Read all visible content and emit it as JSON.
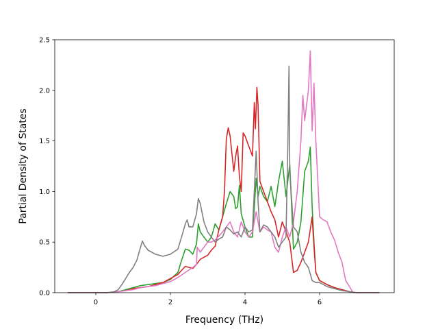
{
  "chart_data": {
    "type": "line",
    "title": "",
    "xlabel": "Frequency (THz)",
    "ylabel": "Partial Density of States",
    "xlim": [
      -1.1,
      8.0
    ],
    "ylim": [
      0,
      2.5
    ],
    "xticks": [
      0,
      2,
      4,
      6
    ],
    "yticks": [
      0.0,
      0.5,
      1.0,
      1.5,
      2.0,
      2.5
    ],
    "xtick_labels": [
      "0",
      "2",
      "4",
      "6"
    ],
    "ytick_labels": [
      "0.0",
      "0.5",
      "1.0",
      "1.5",
      "2.0",
      "2.5"
    ],
    "grid": false,
    "legend": false,
    "series": [
      {
        "color": "#2ca02c",
        "points": [
          [
            -0.75,
            0
          ],
          [
            0.3,
            0
          ],
          [
            0.6,
            0.01
          ],
          [
            0.8,
            0.03
          ],
          [
            1.0,
            0.05
          ],
          [
            1.2,
            0.07
          ],
          [
            1.4,
            0.08
          ],
          [
            1.6,
            0.09
          ],
          [
            1.8,
            0.1
          ],
          [
            2.0,
            0.13
          ],
          [
            2.2,
            0.2
          ],
          [
            2.3,
            0.32
          ],
          [
            2.4,
            0.43
          ],
          [
            2.5,
            0.42
          ],
          [
            2.6,
            0.38
          ],
          [
            2.7,
            0.48
          ],
          [
            2.75,
            0.68
          ],
          [
            2.8,
            0.6
          ],
          [
            2.9,
            0.55
          ],
          [
            3.0,
            0.5
          ],
          [
            3.1,
            0.55
          ],
          [
            3.2,
            0.68
          ],
          [
            3.3,
            0.62
          ],
          [
            3.4,
            0.75
          ],
          [
            3.5,
            0.88
          ],
          [
            3.6,
            1.0
          ],
          [
            3.7,
            0.95
          ],
          [
            3.75,
            0.83
          ],
          [
            3.8,
            0.85
          ],
          [
            3.85,
            1.06
          ],
          [
            3.9,
            0.78
          ],
          [
            4.0,
            0.65
          ],
          [
            4.1,
            0.55
          ],
          [
            4.2,
            0.55
          ],
          [
            4.3,
            1.13
          ],
          [
            4.35,
            0.95
          ],
          [
            4.4,
            1.05
          ],
          [
            4.5,
            0.95
          ],
          [
            4.6,
            0.9
          ],
          [
            4.7,
            1.05
          ],
          [
            4.8,
            0.85
          ],
          [
            4.9,
            1.1
          ],
          [
            5.0,
            1.3
          ],
          [
            5.1,
            0.95
          ],
          [
            5.2,
            1.27
          ],
          [
            5.3,
            0.43
          ],
          [
            5.4,
            0.5
          ],
          [
            5.5,
            0.7
          ],
          [
            5.6,
            1.2
          ],
          [
            5.7,
            1.3
          ],
          [
            5.75,
            1.44
          ],
          [
            5.8,
            0.85
          ],
          [
            5.85,
            0.5
          ],
          [
            5.9,
            0.2
          ],
          [
            6.0,
            0.12
          ],
          [
            6.2,
            0.08
          ],
          [
            6.4,
            0.05
          ],
          [
            6.6,
            0.03
          ],
          [
            6.8,
            0.01
          ],
          [
            7.0,
            0
          ],
          [
            7.6,
            0
          ]
        ]
      },
      {
        "color": "#d62728",
        "points": [
          [
            -0.75,
            0
          ],
          [
            0.3,
            0
          ],
          [
            0.6,
            0.01
          ],
          [
            0.8,
            0.02
          ],
          [
            1.0,
            0.04
          ],
          [
            1.2,
            0.05
          ],
          [
            1.4,
            0.06
          ],
          [
            1.6,
            0.08
          ],
          [
            1.8,
            0.1
          ],
          [
            2.0,
            0.14
          ],
          [
            2.2,
            0.18
          ],
          [
            2.3,
            0.22
          ],
          [
            2.4,
            0.26
          ],
          [
            2.5,
            0.25
          ],
          [
            2.6,
            0.24
          ],
          [
            2.7,
            0.28
          ],
          [
            2.8,
            0.33
          ],
          [
            2.9,
            0.35
          ],
          [
            3.0,
            0.37
          ],
          [
            3.1,
            0.42
          ],
          [
            3.2,
            0.46
          ],
          [
            3.3,
            0.62
          ],
          [
            3.4,
            0.75
          ],
          [
            3.45,
            1.0
          ],
          [
            3.5,
            1.52
          ],
          [
            3.55,
            1.63
          ],
          [
            3.6,
            1.55
          ],
          [
            3.7,
            1.2
          ],
          [
            3.75,
            1.35
          ],
          [
            3.8,
            1.45
          ],
          [
            3.85,
            1.15
          ],
          [
            3.9,
            1.0
          ],
          [
            3.95,
            1.58
          ],
          [
            4.0,
            1.55
          ],
          [
            4.1,
            1.45
          ],
          [
            4.2,
            1.35
          ],
          [
            4.25,
            1.88
          ],
          [
            4.28,
            1.62
          ],
          [
            4.32,
            2.03
          ],
          [
            4.35,
            1.85
          ],
          [
            4.4,
            1.1
          ],
          [
            4.5,
            1.0
          ],
          [
            4.6,
            0.9
          ],
          [
            4.7,
            0.8
          ],
          [
            4.8,
            0.72
          ],
          [
            4.9,
            0.55
          ],
          [
            5.0,
            0.7
          ],
          [
            5.1,
            0.6
          ],
          [
            5.2,
            0.5
          ],
          [
            5.3,
            0.2
          ],
          [
            5.4,
            0.22
          ],
          [
            5.5,
            0.3
          ],
          [
            5.6,
            0.4
          ],
          [
            5.7,
            0.5
          ],
          [
            5.8,
            0.75
          ],
          [
            5.85,
            0.45
          ],
          [
            5.9,
            0.2
          ],
          [
            6.0,
            0.12
          ],
          [
            6.2,
            0.08
          ],
          [
            6.4,
            0.05
          ],
          [
            6.6,
            0.03
          ],
          [
            6.8,
            0.01
          ],
          [
            7.0,
            0
          ],
          [
            7.6,
            0
          ]
        ]
      },
      {
        "color": "#e377c2",
        "points": [
          [
            -0.75,
            0
          ],
          [
            0.3,
            0
          ],
          [
            0.6,
            0.01
          ],
          [
            0.8,
            0.02
          ],
          [
            1.0,
            0.03
          ],
          [
            1.2,
            0.05
          ],
          [
            1.4,
            0.06
          ],
          [
            1.6,
            0.07
          ],
          [
            1.8,
            0.09
          ],
          [
            2.0,
            0.11
          ],
          [
            2.2,
            0.15
          ],
          [
            2.4,
            0.2
          ],
          [
            2.6,
            0.25
          ],
          [
            2.7,
            0.28
          ],
          [
            2.72,
            0.45
          ],
          [
            2.8,
            0.4
          ],
          [
            2.9,
            0.45
          ],
          [
            3.0,
            0.5
          ],
          [
            3.1,
            0.5
          ],
          [
            3.2,
            0.52
          ],
          [
            3.4,
            0.6
          ],
          [
            3.5,
            0.65
          ],
          [
            3.6,
            0.7
          ],
          [
            3.7,
            0.6
          ],
          [
            3.8,
            0.55
          ],
          [
            3.9,
            0.7
          ],
          [
            4.0,
            0.6
          ],
          [
            4.1,
            0.55
          ],
          [
            4.2,
            0.6
          ],
          [
            4.3,
            0.8
          ],
          [
            4.4,
            0.6
          ],
          [
            4.5,
            0.65
          ],
          [
            4.6,
            0.62
          ],
          [
            4.7,
            0.6
          ],
          [
            4.8,
            0.45
          ],
          [
            4.9,
            0.4
          ],
          [
            5.0,
            0.55
          ],
          [
            5.1,
            0.65
          ],
          [
            5.2,
            0.55
          ],
          [
            5.3,
            0.7
          ],
          [
            5.4,
            1.0
          ],
          [
            5.5,
            1.5
          ],
          [
            5.55,
            1.95
          ],
          [
            5.6,
            1.7
          ],
          [
            5.65,
            1.85
          ],
          [
            5.7,
            2.0
          ],
          [
            5.75,
            2.39
          ],
          [
            5.8,
            1.6
          ],
          [
            5.85,
            2.07
          ],
          [
            5.9,
            1.5
          ],
          [
            6.0,
            0.75
          ],
          [
            6.1,
            0.72
          ],
          [
            6.2,
            0.7
          ],
          [
            6.3,
            0.6
          ],
          [
            6.4,
            0.52
          ],
          [
            6.5,
            0.4
          ],
          [
            6.6,
            0.3
          ],
          [
            6.7,
            0.12
          ],
          [
            6.8,
            0.06
          ],
          [
            6.9,
            0
          ],
          [
            7.6,
            0
          ]
        ]
      },
      {
        "color": "#7f7f7f",
        "points": [
          [
            -0.75,
            0
          ],
          [
            0.3,
            0
          ],
          [
            0.5,
            0.01
          ],
          [
            0.6,
            0.03
          ],
          [
            0.7,
            0.08
          ],
          [
            0.8,
            0.14
          ],
          [
            0.9,
            0.2
          ],
          [
            1.0,
            0.25
          ],
          [
            1.1,
            0.32
          ],
          [
            1.2,
            0.45
          ],
          [
            1.25,
            0.51
          ],
          [
            1.3,
            0.47
          ],
          [
            1.4,
            0.42
          ],
          [
            1.6,
            0.38
          ],
          [
            1.8,
            0.36
          ],
          [
            2.0,
            0.38
          ],
          [
            2.2,
            0.43
          ],
          [
            2.3,
            0.55
          ],
          [
            2.4,
            0.68
          ],
          [
            2.45,
            0.72
          ],
          [
            2.5,
            0.65
          ],
          [
            2.6,
            0.65
          ],
          [
            2.7,
            0.78
          ],
          [
            2.75,
            0.93
          ],
          [
            2.8,
            0.88
          ],
          [
            2.9,
            0.7
          ],
          [
            3.0,
            0.6
          ],
          [
            3.1,
            0.55
          ],
          [
            3.2,
            0.5
          ],
          [
            3.3,
            0.53
          ],
          [
            3.4,
            0.55
          ],
          [
            3.5,
            0.65
          ],
          [
            3.6,
            0.62
          ],
          [
            3.7,
            0.58
          ],
          [
            3.8,
            0.6
          ],
          [
            3.9,
            0.55
          ],
          [
            4.0,
            0.65
          ],
          [
            4.1,
            0.6
          ],
          [
            4.2,
            0.62
          ],
          [
            4.3,
            1.4
          ],
          [
            4.35,
            0.9
          ],
          [
            4.4,
            0.6
          ],
          [
            4.5,
            0.67
          ],
          [
            4.6,
            0.65
          ],
          [
            4.7,
            0.6
          ],
          [
            4.8,
            0.55
          ],
          [
            4.9,
            0.45
          ],
          [
            5.0,
            0.5
          ],
          [
            5.1,
            0.55
          ],
          [
            5.15,
            1.5
          ],
          [
            5.18,
            2.24
          ],
          [
            5.2,
            1.2
          ],
          [
            5.3,
            0.65
          ],
          [
            5.4,
            0.6
          ],
          [
            5.5,
            0.4
          ],
          [
            5.6,
            0.3
          ],
          [
            5.7,
            0.25
          ],
          [
            5.8,
            0.12
          ],
          [
            5.9,
            0.1
          ],
          [
            6.0,
            0.1
          ],
          [
            6.2,
            0.06
          ],
          [
            6.4,
            0.04
          ],
          [
            6.6,
            0.02
          ],
          [
            6.8,
            0.01
          ],
          [
            7.0,
            0
          ],
          [
            7.6,
            0
          ]
        ]
      }
    ]
  }
}
